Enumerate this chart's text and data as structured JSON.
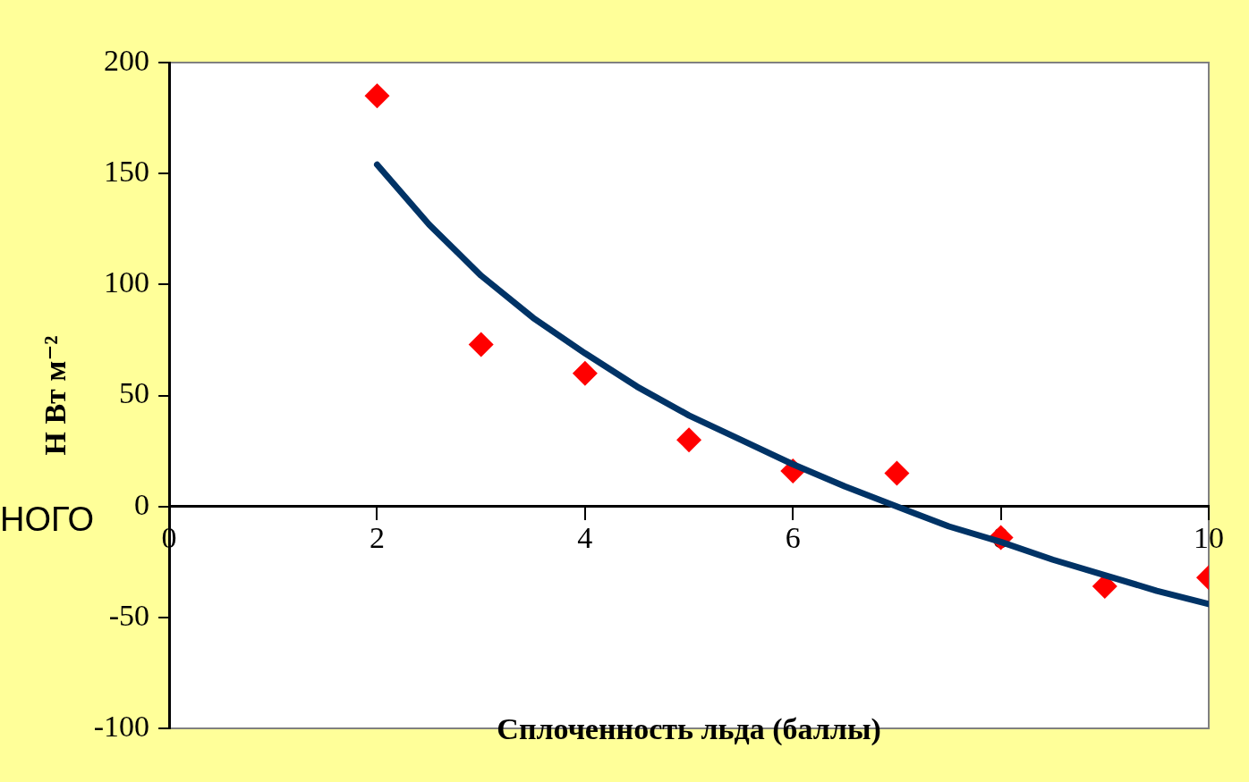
{
  "chart_data": {
    "type": "scatter",
    "xlabel": "Сплоченность льда (баллы)",
    "ylabel": "Н Вт м⁻²",
    "annotations": [
      "НОГО"
    ],
    "xlim": [
      0,
      10
    ],
    "xticks": [
      0,
      2,
      4,
      6,
      8,
      10
    ],
    "ylim": [
      -100,
      200
    ],
    "yticks": [
      -100,
      -50,
      0,
      50,
      100,
      150,
      200
    ],
    "grid": false,
    "legend": false,
    "series": [
      {
        "type": "scatter",
        "color": "#ff0000",
        "marker": "diamond",
        "x": [
          2,
          3,
          4,
          5,
          6,
          7,
          8,
          9,
          10
        ],
        "values": [
          185,
          73,
          60,
          30,
          16,
          15,
          -14,
          -36,
          -32
        ]
      },
      {
        "type": "line",
        "color": "#003366",
        "marker": "none",
        "line_style": "solid",
        "x": [
          2,
          2.5,
          3,
          3.5,
          4,
          4.5,
          5,
          5.5,
          6,
          6.5,
          7,
          7.5,
          8,
          8.5,
          9,
          9.5,
          10
        ],
        "values": [
          154,
          127,
          104,
          85,
          69,
          54,
          41,
          30,
          19,
          9,
          0,
          -9,
          -16,
          -24,
          -31,
          -38,
          -44
        ]
      }
    ]
  }
}
